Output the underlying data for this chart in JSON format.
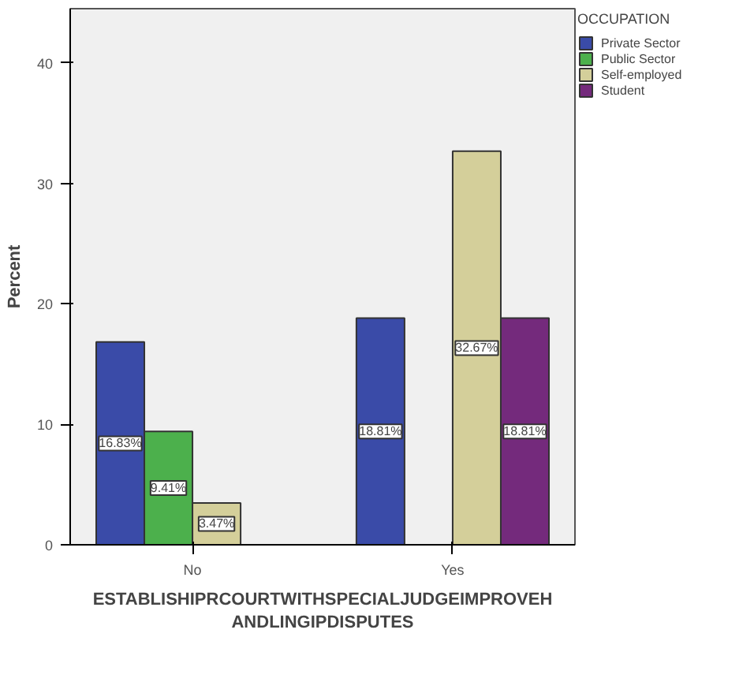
{
  "chart_data": {
    "type": "bar",
    "xlabel": "ESTABLISHIPRCOURTWITHSPECIALJUDGEIMPROVEH\nANDLINGIPDISPUTES",
    "ylabel": "Percent",
    "legend_title": "OCCUPATION",
    "categories": [
      "No",
      "Yes"
    ],
    "series": [
      {
        "name": "Private Sector",
        "color": "#3a4ba8",
        "values": [
          16.83,
          18.81
        ],
        "value_labels": [
          "16.83%",
          "18.81%"
        ]
      },
      {
        "name": "Public Sector",
        "color": "#4cb04c",
        "values": [
          9.41,
          null
        ],
        "value_labels": [
          "9.41%",
          null
        ]
      },
      {
        "name": "Self-employed",
        "color": "#d4cf9a",
        "values": [
          3.47,
          32.67
        ],
        "value_labels": [
          "3.47%",
          "32.67%"
        ]
      },
      {
        "name": "Student",
        "color": "#742a7c",
        "values": [
          null,
          18.81
        ],
        "value_labels": [
          null,
          "18.81%"
        ]
      }
    ],
    "ylim": [
      0,
      44.5
    ],
    "yticks": [
      0,
      10,
      20,
      30,
      40
    ],
    "grid": false,
    "legend": "right"
  }
}
